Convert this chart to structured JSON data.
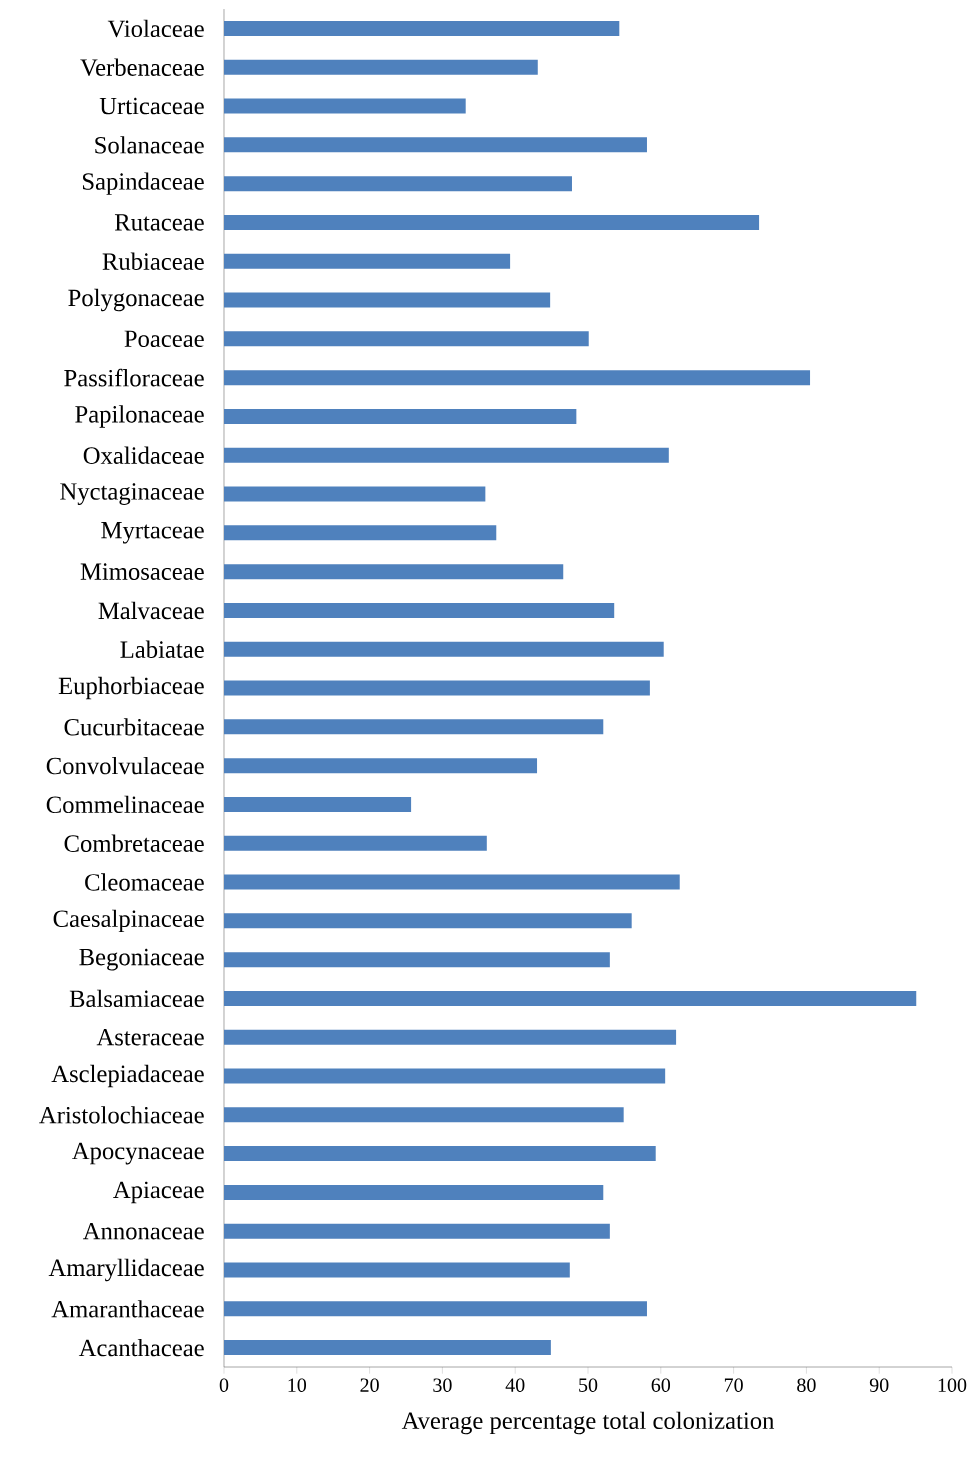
{
  "chart_data": {
    "type": "bar",
    "orientation": "horizontal",
    "xlabel": "Average percentage total colonization",
    "categories": [
      "Violaceae",
      "Verbenaceae",
      "Urticaceae",
      "Solanaceae",
      "Sapindaceae",
      "Rutaceae",
      "Rubiaceae",
      "Polygonaceae",
      "Poaceae",
      "Passifloraceae",
      "Papilonaceae",
      "Oxalidaceae",
      "Nyctaginaceae",
      "Myrtaceae",
      "Mimosaceae",
      "Malvaceae",
      "Labiatae",
      "Euphorbiaceae",
      "Cucurbitaceae",
      "Convolvulaceae",
      "Commelinaceae",
      "Combretaceae",
      "Cleomaceae",
      "Caesalpinaceae",
      "Begoniaceae",
      "Balsamiaceae",
      "Asteraceae",
      "Asclepiadaceae",
      "Aristolochiaceae",
      "Apocynaceae",
      "Apiaceae",
      "Annonaceae",
      "Amaryllidaceae",
      "Amaranthaceae",
      "Acanthaceae"
    ],
    "values": [
      54.3,
      43.1,
      33.2,
      58.1,
      47.8,
      73.5,
      39.3,
      44.8,
      50.1,
      80.5,
      48.4,
      61.1,
      35.9,
      37.4,
      46.6,
      53.6,
      60.4,
      58.5,
      52.1,
      43.0,
      25.7,
      36.1,
      62.6,
      56.0,
      53.0,
      95.1,
      62.1,
      60.6,
      54.9,
      59.3,
      52.1,
      53.0,
      47.5,
      58.1,
      44.9
    ],
    "color": "#4f81bd",
    "xlim": [
      0,
      100
    ],
    "xticks": [
      0,
      10,
      20,
      30,
      40,
      50,
      60,
      70,
      80,
      90,
      100
    ],
    "grid": false
  }
}
